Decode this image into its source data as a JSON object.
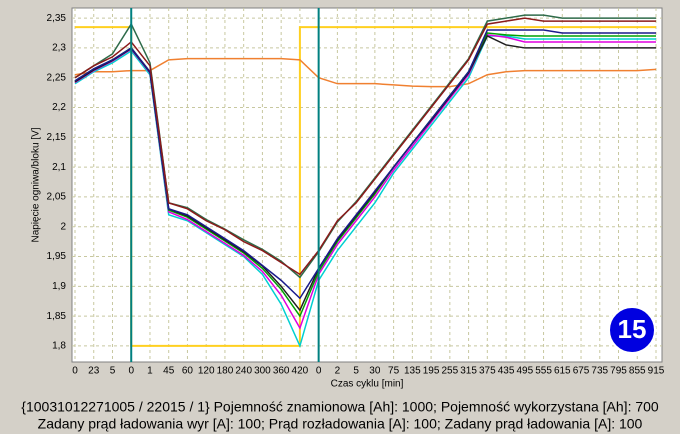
{
  "chart_data": {
    "type": "line",
    "y_label": "Napięcie ogniwa/bloku [V]",
    "x_label": "Czas cyklu [min]",
    "categories": [
      "0",
      "23",
      "5",
      "0",
      "1",
      "45",
      "60",
      "120",
      "180",
      "240",
      "300",
      "360",
      "420",
      "0",
      "2",
      "5",
      "30",
      "75",
      "135",
      "195",
      "255",
      "315",
      "375",
      "435",
      "495",
      "555",
      "615",
      "675",
      "735",
      "795",
      "855",
      "915"
    ],
    "ylim": [
      1.773,
      2.367
    ],
    "yticks": [
      {
        "value": 1.8,
        "label": "1,8"
      },
      {
        "value": 1.85,
        "label": "1,85"
      },
      {
        "value": 1.9,
        "label": "1,9"
      },
      {
        "value": 1.95,
        "label": "1,95"
      },
      2,
      {
        "value": 2.05,
        "label": "2,05"
      },
      {
        "value": 2.1,
        "label": "2,1"
      },
      {
        "value": 2.15,
        "label": "2,15"
      },
      {
        "value": 2.2,
        "label": "2,2"
      },
      {
        "value": 2.25,
        "label": "2,25"
      },
      {
        "value": 2.3,
        "label": "2,3"
      },
      {
        "value": 2.35,
        "label": "2,35"
      }
    ],
    "grid": true,
    "markers_at": [
      3,
      13
    ],
    "series": [
      {
        "color": "#ffd020",
        "drawstyle": "steps-pre",
        "values": [
          2.335,
          2.335,
          2.335,
          2.335,
          1.8,
          1.8,
          1.8,
          1.8,
          1.8,
          1.8,
          1.8,
          1.8,
          1.8,
          2.335,
          2.335,
          2.335,
          2.335,
          2.335,
          2.335,
          2.335,
          2.335,
          2.335,
          2.335,
          2.335,
          2.335,
          2.335,
          2.335,
          2.335,
          2.335,
          2.335,
          2.335,
          2.335
        ]
      },
      {
        "color": "#f08030",
        "values": [
          2.255,
          2.26,
          2.26,
          2.262,
          2.262,
          2.28,
          2.282,
          2.282,
          2.282,
          2.282,
          2.282,
          2.282,
          2.28,
          2.25,
          2.24,
          2.24,
          2.24,
          2.238,
          2.236,
          2.235,
          2.235,
          2.24,
          2.255,
          2.26,
          2.262,
          2.262,
          2.262,
          2.262,
          2.262,
          2.262,
          2.262,
          2.264
        ]
      },
      {
        "color": "#00d0d0",
        "values": [
          2.24,
          2.26,
          2.275,
          2.295,
          2.255,
          2.02,
          2.01,
          1.99,
          1.97,
          1.95,
          1.92,
          1.87,
          1.8,
          1.91,
          1.96,
          2.0,
          2.04,
          2.09,
          2.13,
          2.17,
          2.21,
          2.25,
          2.32,
          2.32,
          2.315,
          2.315,
          2.315,
          2.315,
          2.315,
          2.315,
          2.315,
          2.315
        ]
      },
      {
        "color": "#e000e0",
        "values": [
          2.242,
          2.262,
          2.278,
          2.298,
          2.258,
          2.025,
          2.012,
          1.992,
          1.972,
          1.952,
          1.925,
          1.885,
          1.83,
          1.92,
          1.97,
          2.01,
          2.05,
          2.095,
          2.135,
          2.175,
          2.215,
          2.255,
          2.322,
          2.318,
          2.31,
          2.31,
          2.31,
          2.31,
          2.31,
          2.31,
          2.31,
          2.31
        ]
      },
      {
        "color": "#00a000",
        "values": [
          2.244,
          2.264,
          2.28,
          2.3,
          2.26,
          2.028,
          2.016,
          1.996,
          1.976,
          1.956,
          1.93,
          1.895,
          1.85,
          1.925,
          1.975,
          2.015,
          2.055,
          2.1,
          2.14,
          2.18,
          2.22,
          2.26,
          2.325,
          2.322,
          2.32,
          2.32,
          2.32,
          2.32,
          2.32,
          2.32,
          2.32,
          2.32
        ]
      },
      {
        "color": "#202020",
        "values": [
          2.243,
          2.263,
          2.279,
          2.299,
          2.259,
          2.03,
          2.018,
          1.998,
          1.978,
          1.958,
          1.934,
          1.9,
          1.86,
          1.93,
          1.978,
          2.018,
          2.058,
          2.1,
          2.14,
          2.178,
          2.218,
          2.258,
          2.32,
          2.305,
          2.3,
          2.3,
          2.3,
          2.3,
          2.3,
          2.3,
          2.3,
          2.3
        ]
      },
      {
        "color": "#1a1a8b",
        "values": [
          2.245,
          2.265,
          2.28,
          2.3,
          2.26,
          2.03,
          2.02,
          2.0,
          1.98,
          1.96,
          1.935,
          1.91,
          1.88,
          1.93,
          1.98,
          2.02,
          2.06,
          2.1,
          2.14,
          2.18,
          2.22,
          2.26,
          2.33,
          2.33,
          2.33,
          2.33,
          2.325,
          2.325,
          2.325,
          2.325,
          2.325,
          2.325
        ]
      },
      {
        "color": "#2e6b4a",
        "values": [
          2.25,
          2.27,
          2.29,
          2.34,
          2.275,
          2.04,
          2.032,
          2.012,
          1.996,
          1.978,
          1.962,
          1.942,
          1.915,
          1.958,
          2.008,
          2.042,
          2.082,
          2.122,
          2.162,
          2.202,
          2.242,
          2.282,
          2.345,
          2.35,
          2.355,
          2.355,
          2.35,
          2.35,
          2.35,
          2.35,
          2.35,
          2.35
        ]
      },
      {
        "color": "#8b1a1a",
        "values": [
          2.25,
          2.27,
          2.285,
          2.31,
          2.27,
          2.04,
          2.03,
          2.01,
          1.995,
          1.975,
          1.96,
          1.94,
          1.92,
          1.96,
          2.01,
          2.04,
          2.08,
          2.12,
          2.16,
          2.2,
          2.24,
          2.28,
          2.34,
          2.345,
          2.35,
          2.345,
          2.345,
          2.345,
          2.345,
          2.345,
          2.345,
          2.345
        ]
      }
    ]
  },
  "badge": "15",
  "footer": [
    "{10031012271005 / 22015 / 1} Pojemność znamionowa [Ah]: 1000;  Pojemność wykorzystana [Ah]: 700",
    "Zadany prąd ładowania wyr [A]: 100;  Prąd rozładowania [A]: 100;  Zadany prąd ładowania [A]: 100"
  ]
}
